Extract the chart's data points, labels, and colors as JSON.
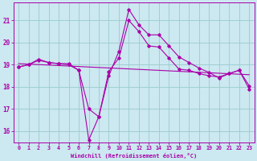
{
  "xlabel": "Windchill (Refroidissement éolien,°C)",
  "bg_color": "#cce8f0",
  "line_color": "#aa00aa",
  "grid_color": "#99cccc",
  "x": [
    0,
    1,
    2,
    3,
    4,
    5,
    6,
    7,
    8,
    9,
    10,
    11,
    12,
    13,
    14,
    15,
    16,
    17,
    18,
    19,
    20,
    21,
    22,
    23
  ],
  "line1": [
    18.9,
    19.0,
    19.2,
    19.1,
    19.05,
    19.05,
    18.75,
    15.6,
    16.65,
    18.5,
    19.6,
    21.5,
    20.8,
    20.35,
    20.35,
    19.85,
    19.35,
    19.1,
    18.85,
    18.65,
    18.4,
    18.6,
    18.75,
    17.9
  ],
  "line2": [
    18.9,
    19.0,
    19.25,
    19.1,
    19.05,
    19.0,
    18.75,
    17.0,
    16.65,
    18.7,
    19.3,
    21.0,
    20.5,
    19.85,
    19.8,
    19.3,
    18.8,
    18.75,
    18.6,
    18.5,
    18.45,
    18.6,
    18.75,
    18.05
  ],
  "line3_x": [
    0,
    23
  ],
  "line3_y": [
    19.05,
    18.55
  ],
  "xlim": [
    -0.5,
    23.5
  ],
  "ylim": [
    15.5,
    21.8
  ],
  "yticks": [
    16,
    17,
    18,
    19,
    20,
    21
  ],
  "xticks": [
    0,
    1,
    2,
    3,
    4,
    5,
    6,
    7,
    8,
    9,
    10,
    11,
    12,
    13,
    14,
    15,
    16,
    17,
    18,
    19,
    20,
    21,
    22,
    23
  ]
}
